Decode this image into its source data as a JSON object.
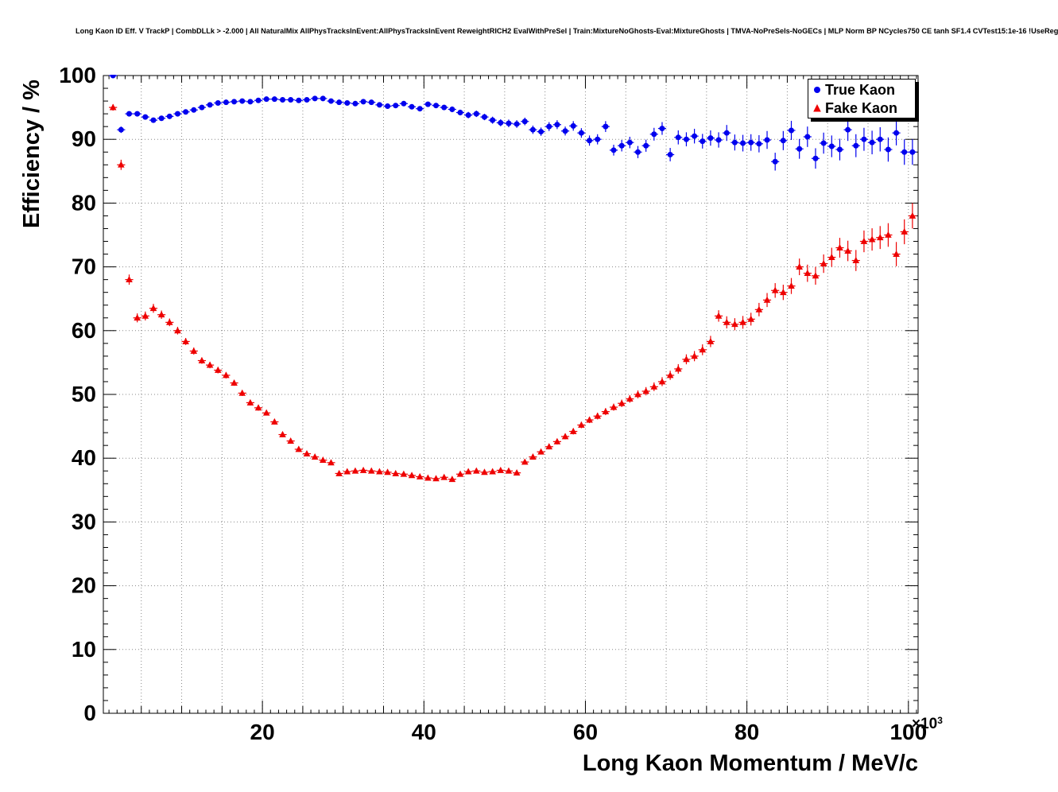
{
  "title": "Long Kaon ID Eff. V TrackP | CombDLLk > -2.000 | All NaturalMix AllPhysTracksInEvent:AllPhysTracksInEvent ReweightRICH2 EvalWithPreSel | Train:MixtureNoGhosts-Eval:MixtureGhosts | TMVA-NoPreSels-NoGECs | MLP Norm BP NCycles750 CE tanh SF1.4 CVTest15:1e-16 !UseReg",
  "colors": {
    "true_kaon": "#0000ee",
    "fake_kaon": "#ee0000",
    "grid": "#888888",
    "frame": "#000000",
    "legend_shadow": "#000000"
  },
  "chart_data": {
    "type": "scatter",
    "title": "Long Kaon ID Eff. V TrackP | CombDLLk > -2.000 | All NaturalMix AllPhysTracksInEvent:AllPhysTracksInEvent ReweightRICH2 EvalWithPreSel | Train:MixtureNoGhosts-Eval:MixtureGhosts | TMVA-NoPreSels-NoGECs | MLP Norm BP NCycles750 CE tanh SF1.4 CVTest15:1e-16 !UseReg",
    "xlabel": "Long Kaon Momentum / MeV/c",
    "ylabel": "Efficiency / %",
    "x_exp_base": "×10",
    "x_exp_power": "3",
    "x_unit_note": "x-axis values are in units of 10^3 MeV/c",
    "xlim": [
      0.3,
      101.2
    ],
    "ylim": [
      0,
      100
    ],
    "x_grid_step": 5,
    "y_grid_step": 10,
    "grid": true,
    "grid_style": "dotted",
    "legend_position": "top-right",
    "xticks": {
      "values": [
        20,
        40,
        60,
        80,
        100
      ],
      "labels": [
        "20",
        "40",
        "60",
        "80",
        "100"
      ]
    },
    "yticks": {
      "values": [
        0,
        10,
        20,
        30,
        40,
        50,
        60,
        70,
        80,
        90,
        100
      ],
      "labels": [
        "0",
        "10",
        "20",
        "30",
        "40",
        "50",
        "60",
        "70",
        "80",
        "90",
        "100"
      ]
    },
    "series": [
      {
        "name": "True Kaon",
        "marker": "circle",
        "color": "#0000ee",
        "x_start": 1.5,
        "x_step": 1.0,
        "x_bin_half_width": 0.5,
        "values": [
          100.0,
          91.5,
          94.0,
          94.0,
          93.5,
          93.0,
          93.3,
          93.6,
          94.0,
          94.3,
          94.6,
          95.0,
          95.4,
          95.7,
          95.8,
          95.9,
          96.0,
          95.9,
          96.1,
          96.3,
          96.3,
          96.2,
          96.2,
          96.1,
          96.2,
          96.4,
          96.4,
          96.0,
          95.8,
          95.7,
          95.6,
          95.9,
          95.8,
          95.4,
          95.2,
          95.3,
          95.6,
          95.1,
          94.8,
          95.5,
          95.3,
          95.0,
          94.7,
          94.2,
          93.8,
          94.0,
          93.5,
          93.0,
          92.6,
          92.5,
          92.4,
          92.8,
          91.5,
          91.2,
          92.0,
          92.3,
          91.3,
          92.1,
          91.0,
          89.8,
          90.0,
          92.0,
          88.3,
          89.0,
          89.5,
          88.0,
          89.0,
          90.8,
          91.7,
          87.6,
          90.3,
          90.0,
          90.5,
          89.7,
          90.2,
          89.9,
          91.0,
          89.5,
          89.4,
          89.5,
          89.3,
          89.9,
          86.5,
          89.8,
          91.4,
          88.5,
          90.4,
          87.0,
          89.4,
          88.9,
          88.4,
          91.5,
          89.0,
          90.0,
          89.5,
          90.0,
          88.4,
          91.0,
          88.0,
          88.0
        ],
        "errors": [
          0.15,
          0.5,
          0.4,
          0.35,
          0.3,
          0.3,
          0.3,
          0.25,
          0.25,
          0.25,
          0.25,
          0.25,
          0.25,
          0.25,
          0.25,
          0.25,
          0.25,
          0.25,
          0.25,
          0.25,
          0.25,
          0.25,
          0.25,
          0.25,
          0.25,
          0.25,
          0.3,
          0.3,
          0.3,
          0.3,
          0.3,
          0.3,
          0.3,
          0.3,
          0.35,
          0.35,
          0.35,
          0.35,
          0.4,
          0.4,
          0.4,
          0.4,
          0.45,
          0.45,
          0.5,
          0.5,
          0.5,
          0.55,
          0.55,
          0.6,
          0.6,
          0.6,
          0.65,
          0.65,
          0.7,
          0.7,
          0.7,
          0.75,
          0.75,
          0.8,
          0.8,
          0.85,
          0.85,
          0.9,
          0.9,
          0.95,
          0.95,
          1.0,
          1.0,
          1.05,
          1.1,
          1.1,
          1.15,
          1.15,
          1.2,
          1.2,
          1.25,
          1.25,
          1.3,
          1.3,
          1.35,
          1.4,
          1.4,
          1.5,
          1.5,
          1.55,
          1.6,
          1.6,
          1.65,
          1.7,
          1.7,
          1.75,
          1.8,
          1.8,
          1.85,
          1.9,
          1.9,
          1.95,
          2.0,
          2.0
        ]
      },
      {
        "name": "Fake Kaon",
        "marker": "triangle",
        "color": "#ee0000",
        "x_start": 1.5,
        "x_step": 1.0,
        "x_bin_half_width": 0.5,
        "values": [
          95.0,
          86.0,
          68.0,
          62.0,
          62.3,
          63.5,
          62.5,
          61.3,
          60.0,
          58.3,
          56.8,
          55.3,
          54.6,
          53.8,
          53.0,
          51.8,
          50.2,
          48.7,
          47.9,
          47.1,
          45.7,
          43.7,
          42.7,
          41.4,
          40.7,
          40.2,
          39.7,
          39.3,
          37.6,
          37.9,
          38.0,
          38.1,
          38.0,
          37.9,
          37.8,
          37.6,
          37.5,
          37.3,
          37.1,
          36.9,
          36.8,
          37.0,
          36.7,
          37.5,
          37.9,
          38.0,
          37.8,
          37.9,
          38.1,
          38.0,
          37.7,
          39.4,
          40.2,
          41.0,
          41.8,
          42.6,
          43.4,
          44.2,
          45.2,
          46.0,
          46.6,
          47.3,
          48.0,
          48.6,
          49.3,
          50.0,
          50.5,
          51.2,
          52.0,
          53.0,
          54.0,
          55.5,
          56.0,
          57.0,
          58.3,
          62.3,
          61.3,
          61.0,
          61.3,
          61.8,
          63.3,
          64.8,
          66.3,
          66.0,
          67.0,
          70.0,
          69.0,
          68.6,
          70.5,
          71.5,
          73.0,
          72.5,
          71.0,
          74.0,
          74.3,
          74.6,
          75.0,
          72.0,
          75.5,
          78.0
        ],
        "errors": [
          0.5,
          0.8,
          0.8,
          0.7,
          0.7,
          0.7,
          0.65,
          0.6,
          0.6,
          0.55,
          0.55,
          0.5,
          0.5,
          0.5,
          0.5,
          0.45,
          0.45,
          0.45,
          0.45,
          0.4,
          0.4,
          0.4,
          0.4,
          0.4,
          0.38,
          0.38,
          0.35,
          0.35,
          0.35,
          0.33,
          0.33,
          0.32,
          0.32,
          0.3,
          0.3,
          0.3,
          0.3,
          0.3,
          0.3,
          0.3,
          0.3,
          0.3,
          0.3,
          0.3,
          0.3,
          0.3,
          0.32,
          0.32,
          0.33,
          0.35,
          0.35,
          0.38,
          0.4,
          0.4,
          0.42,
          0.45,
          0.45,
          0.48,
          0.5,
          0.5,
          0.52,
          0.55,
          0.55,
          0.58,
          0.6,
          0.62,
          0.65,
          0.68,
          0.7,
          0.72,
          0.75,
          0.78,
          0.8,
          0.85,
          0.88,
          0.9,
          0.95,
          0.95,
          1.0,
          1.0,
          1.05,
          1.1,
          1.15,
          1.2,
          1.25,
          1.3,
          1.35,
          1.4,
          1.45,
          1.5,
          1.55,
          1.6,
          1.65,
          1.7,
          1.75,
          1.8,
          1.85,
          1.9,
          1.95,
          2.0
        ]
      }
    ]
  }
}
